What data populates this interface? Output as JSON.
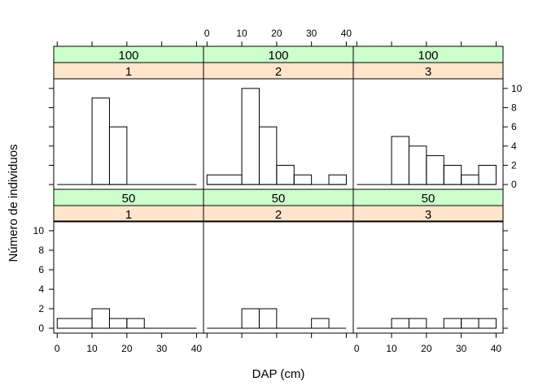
{
  "chart_data": {
    "type": "bar",
    "layout": "lattice 3 columns x 2 rows, histogram panels",
    "xlabel": "DAP (cm)",
    "ylabel": "Número de individuos",
    "xlim": [
      -1,
      42
    ],
    "ylim": [
      -0.5,
      11
    ],
    "x_ticks": [
      "0",
      "10",
      "20",
      "30",
      "40"
    ],
    "y_ticks": [
      "0",
      "2",
      "4",
      "6",
      "8",
      "10"
    ],
    "bin_width": 5,
    "strip_colors": {
      "outer": "#ccffcc",
      "inner": "#ffe5cc"
    },
    "panels": [
      {
        "strip_outer": "100",
        "strip_inner": "1",
        "bins": [
          {
            "x0": 10,
            "x1": 15,
            "count": 9
          },
          {
            "x0": 15,
            "x1": 20,
            "count": 6
          }
        ]
      },
      {
        "strip_outer": "100",
        "strip_inner": "2",
        "bins": [
          {
            "x0": 0,
            "x1": 10,
            "count": 1
          },
          {
            "x0": 10,
            "x1": 15,
            "count": 10
          },
          {
            "x0": 15,
            "x1": 20,
            "count": 6
          },
          {
            "x0": 20,
            "x1": 25,
            "count": 2
          },
          {
            "x0": 25,
            "x1": 30,
            "count": 1
          },
          {
            "x0": 35,
            "x1": 40,
            "count": 1
          }
        ]
      },
      {
        "strip_outer": "100",
        "strip_inner": "3",
        "bins": [
          {
            "x0": 10,
            "x1": 15,
            "count": 5
          },
          {
            "x0": 15,
            "x1": 20,
            "count": 4
          },
          {
            "x0": 20,
            "x1": 25,
            "count": 3
          },
          {
            "x0": 25,
            "x1": 30,
            "count": 2
          },
          {
            "x0": 30,
            "x1": 35,
            "count": 1
          },
          {
            "x0": 35,
            "x1": 40,
            "count": 2
          }
        ]
      },
      {
        "strip_outer": "50",
        "strip_inner": "1",
        "bins": [
          {
            "x0": 0,
            "x1": 10,
            "count": 1
          },
          {
            "x0": 10,
            "x1": 15,
            "count": 2
          },
          {
            "x0": 15,
            "x1": 20,
            "count": 1
          },
          {
            "x0": 20,
            "x1": 25,
            "count": 1
          }
        ]
      },
      {
        "strip_outer": "50",
        "strip_inner": "2",
        "bins": [
          {
            "x0": 10,
            "x1": 15,
            "count": 2
          },
          {
            "x0": 15,
            "x1": 20,
            "count": 2
          },
          {
            "x0": 30,
            "x1": 35,
            "count": 1
          }
        ]
      },
      {
        "strip_outer": "50",
        "strip_inner": "3",
        "bins": [
          {
            "x0": 10,
            "x1": 15,
            "count": 1
          },
          {
            "x0": 15,
            "x1": 20,
            "count": 1
          },
          {
            "x0": 25,
            "x1": 30,
            "count": 1
          },
          {
            "x0": 30,
            "x1": 35,
            "count": 1
          },
          {
            "x0": 35,
            "x1": 40,
            "count": 1
          }
        ]
      }
    ]
  }
}
